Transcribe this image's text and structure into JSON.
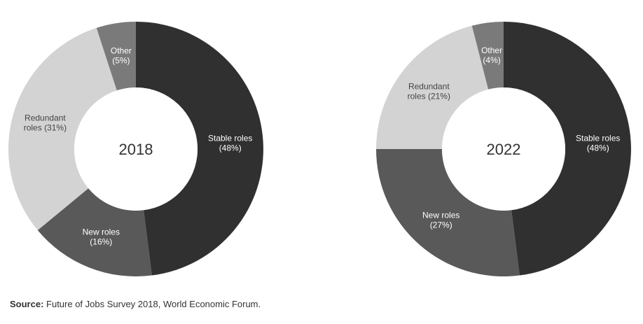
{
  "chart_data": [
    {
      "type": "pie",
      "center_label": "2018",
      "slices": [
        {
          "name": "Stable roles",
          "value": 48,
          "label_lines": [
            "Stable roles",
            "(48%)"
          ],
          "color": "#303030",
          "text_color": "#ffffff"
        },
        {
          "name": "New roles",
          "value": 16,
          "label_lines": [
            "New roles",
            "(16%)"
          ],
          "color": "#595959",
          "text_color": "#ffffff"
        },
        {
          "name": "Redundant roles",
          "value": 31,
          "label_lines": [
            "Redundant",
            "roles (31%)"
          ],
          "color": "#d3d3d3",
          "text_color": "#444444"
        },
        {
          "name": "Other",
          "value": 5,
          "label_lines": [
            "Other",
            "(5%)"
          ],
          "color": "#7a7a7a",
          "text_color": "#ffffff"
        }
      ]
    },
    {
      "type": "pie",
      "center_label": "2022",
      "slices": [
        {
          "name": "Stable roles",
          "value": 48,
          "label_lines": [
            "Stable roles",
            "(48%)"
          ],
          "color": "#303030",
          "text_color": "#ffffff"
        },
        {
          "name": "New roles",
          "value": 27,
          "label_lines": [
            "New roles",
            "(27%)"
          ],
          "color": "#595959",
          "text_color": "#ffffff"
        },
        {
          "name": "Redundant roles",
          "value": 21,
          "label_lines": [
            "Redundant",
            "roles (21%)"
          ],
          "color": "#d3d3d3",
          "text_color": "#444444"
        },
        {
          "name": "Other",
          "value": 4,
          "label_lines": [
            "Other",
            "(4%)"
          ],
          "color": "#7a7a7a",
          "text_color": "#ffffff"
        }
      ]
    }
  ],
  "source": {
    "label": "Source:",
    "text": " Future of Jobs Survey 2018, World Economic Forum."
  }
}
